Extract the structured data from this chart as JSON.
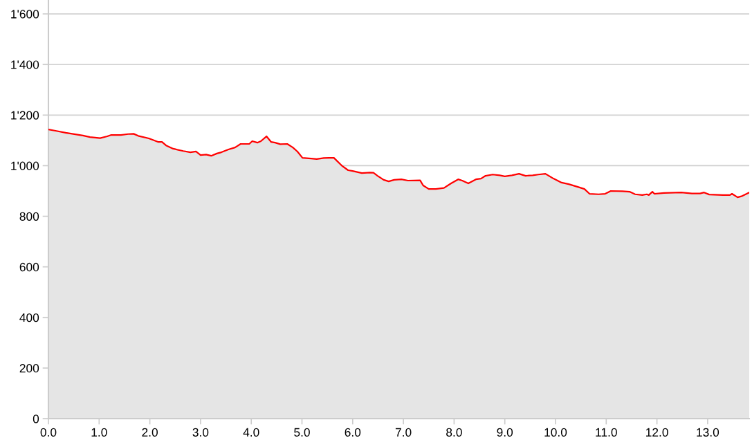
{
  "chart_data": {
    "type": "area",
    "x": [
      0,
      0.14,
      0.34,
      0.68,
      0.82,
      1.02,
      1.16,
      1.23,
      1.43,
      1.57,
      1.68,
      1.77,
      1.98,
      2.16,
      2.24,
      2.32,
      2.46,
      2.66,
      2.8,
      2.91,
      3.0,
      3.11,
      3.21,
      3.32,
      3.41,
      3.55,
      3.68,
      3.79,
      3.96,
      4.02,
      4.12,
      4.19,
      4.3,
      4.39,
      4.47,
      4.57,
      4.71,
      4.82,
      4.91,
      5.01,
      5.18,
      5.29,
      5.43,
      5.53,
      5.63,
      5.78,
      5.91,
      6.0,
      6.18,
      6.34,
      6.41,
      6.49,
      6.61,
      6.71,
      6.82,
      6.96,
      7.09,
      7.33,
      7.39,
      7.5,
      7.64,
      7.8,
      7.94,
      8.08,
      8.16,
      8.28,
      8.43,
      8.53,
      8.62,
      8.76,
      8.9,
      9.0,
      9.14,
      9.28,
      9.41,
      9.55,
      9.66,
      9.8,
      9.96,
      10.12,
      10.26,
      10.44,
      10.57,
      10.67,
      10.85,
      10.98,
      11.09,
      11.32,
      11.46,
      11.57,
      11.71,
      11.8,
      11.84,
      11.91,
      11.95,
      12.14,
      12.48,
      12.69,
      12.85,
      12.93,
      13.03,
      13.3,
      13.44,
      13.48,
      13.59,
      13.68,
      13.82
    ],
    "series": [
      {
        "color": "#ff0000",
        "values": [
          1143,
          1138,
          1130,
          1119,
          1113,
          1109,
          1116,
          1121,
          1121,
          1125,
          1126,
          1118,
          1108,
          1094,
          1094,
          1080,
          1067,
          1058,
          1053,
          1056,
          1042,
          1044,
          1039,
          1048,
          1053,
          1064,
          1072,
          1086,
          1086,
          1097,
          1091,
          1097,
          1116,
          1094,
          1091,
          1085,
          1086,
          1072,
          1056,
          1031,
          1028,
          1026,
          1030,
          1031,
          1031,
          1001,
          982,
          979,
          971,
          973,
          972,
          960,
          944,
          938,
          944,
          946,
          941,
          942,
          922,
          908,
          908,
          912,
          930,
          946,
          941,
          930,
          946,
          949,
          960,
          965,
          962,
          958,
          962,
          968,
          960,
          962,
          965,
          968,
          949,
          933,
          927,
          916,
          908,
          889,
          887,
          889,
          900,
          899,
          897,
          887,
          884,
          887,
          884,
          897,
          889,
          892,
          894,
          890,
          890,
          894,
          886,
          884,
          884,
          889,
          875,
          880,
          894
        ]
      }
    ],
    "xlim": [
      0,
      13.82
    ],
    "xticks": [
      {
        "value": 0,
        "label": "0.0"
      },
      {
        "value": 1,
        "label": "1.0"
      },
      {
        "value": 2,
        "label": "2.0"
      },
      {
        "value": 3,
        "label": "3.0"
      },
      {
        "value": 4,
        "label": "4.0"
      },
      {
        "value": 5,
        "label": "5.0"
      },
      {
        "value": 6,
        "label": "6.0"
      },
      {
        "value": 7,
        "label": "7.0"
      },
      {
        "value": 8,
        "label": "8.0"
      },
      {
        "value": 9,
        "label": "9.0"
      },
      {
        "value": 10,
        "label": "10.0"
      },
      {
        "value": 11,
        "label": "11.0"
      },
      {
        "value": 12,
        "label": "12.0"
      },
      {
        "value": 13,
        "label": "13.0"
      }
    ],
    "ylim": [
      0,
      1655
    ],
    "yticks": [
      0,
      200,
      400,
      600,
      800,
      {
        "value": 1000,
        "label": "1'000"
      },
      {
        "value": 1200,
        "label": "1'200"
      },
      {
        "value": 1400,
        "label": "1'400"
      },
      {
        "value": 1600,
        "label": "1'600"
      }
    ],
    "grid": "y"
  }
}
